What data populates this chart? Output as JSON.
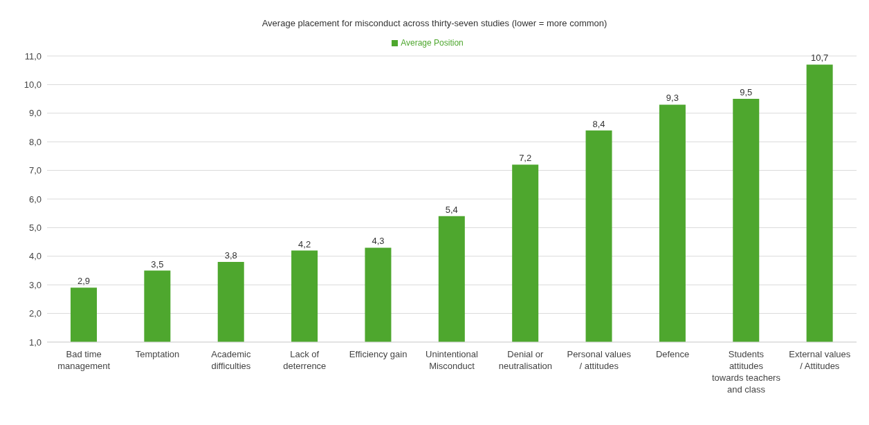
{
  "chart_data": {
    "type": "bar",
    "title": "Average placement for misconduct across thirty-seven studies (lower = more common)",
    "categories": [
      "Bad time management",
      "Temptation",
      "Academic difficulties",
      "Lack of deterrence",
      "Efficiency gain",
      "Unintentional Misconduct",
      "Denial or neutralisation",
      "Personal values / attitudes",
      "Defence",
      "Students attitudes towards teachers and class",
      "External values / Attitudes"
    ],
    "series": [
      {
        "name": "Average Position",
        "color": "#4ea72e",
        "values": [
          2.9,
          3.5,
          3.8,
          4.2,
          4.3,
          5.4,
          7.2,
          8.4,
          9.3,
          9.5,
          10.7
        ],
        "value_labels": [
          "2,9",
          "3,5",
          "3,8",
          "4,2",
          "4,3",
          "5,4",
          "7,2",
          "8,4",
          "9,3",
          "9,5",
          "10,7"
        ]
      }
    ],
    "ylim": [
      1,
      11
    ],
    "yticks": [
      {
        "value": 1,
        "label": "1,0"
      },
      {
        "value": 2,
        "label": "2,0"
      },
      {
        "value": 3,
        "label": "3,0"
      },
      {
        "value": 4,
        "label": "4,0"
      },
      {
        "value": 5,
        "label": "5,0"
      },
      {
        "value": 6,
        "label": "6,0"
      },
      {
        "value": 7,
        "label": "7,0"
      },
      {
        "value": 8,
        "label": "8,0"
      },
      {
        "value": 9,
        "label": "9,0"
      },
      {
        "value": 10,
        "label": "10,0"
      },
      {
        "value": 11,
        "label": "11,0"
      }
    ],
    "grid": "y",
    "legend": "top"
  }
}
